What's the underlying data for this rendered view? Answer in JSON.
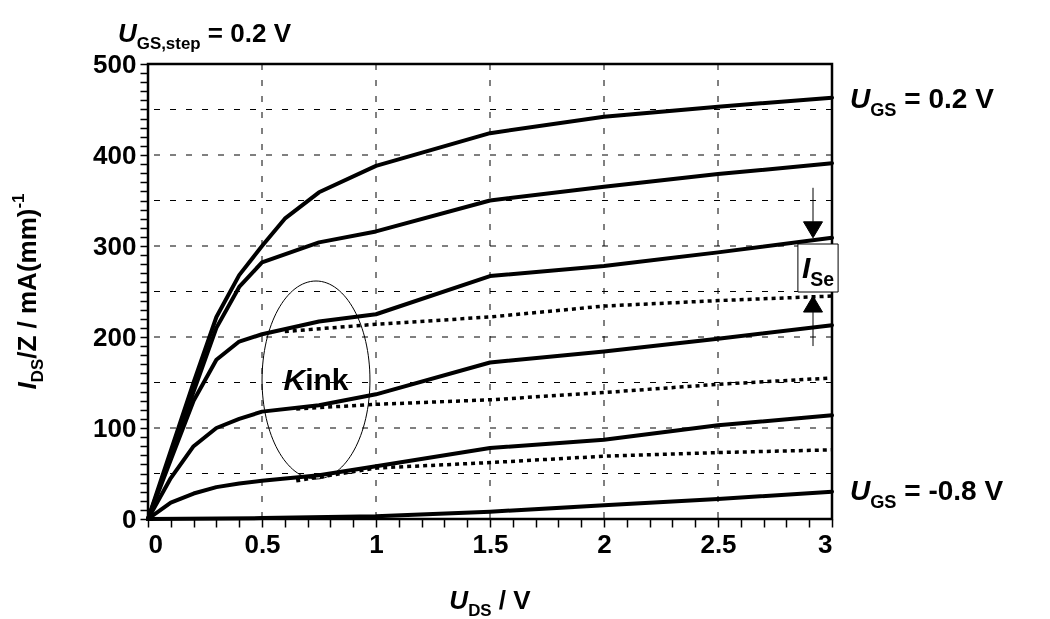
{
  "chart_data": {
    "type": "line",
    "title": "U$_{GS,step}$ = 0.2 V",
    "xlabel": "U$_{DS}$ / V",
    "ylabel": "I$_{DS}$/Z / mA(mm)$^{-1}$",
    "xlim": [
      0,
      3
    ],
    "ylim": [
      0,
      500
    ],
    "xticks": [
      0,
      {
        "value": 0.1,
        "label": null
      },
      {
        "value": 0.2,
        "label": null
      },
      {
        "value": 0.3,
        "label": null
      },
      {
        "value": 0.4,
        "label": null
      },
      0.5,
      {
        "value": 0.6,
        "label": null
      },
      {
        "value": 0.7,
        "label": null
      },
      {
        "value": 0.8,
        "label": null
      },
      {
        "value": 0.9,
        "label": null
      },
      1,
      {
        "value": 1.1,
        "label": null
      },
      {
        "value": 1.2,
        "label": null
      },
      {
        "value": 1.3,
        "label": null
      },
      {
        "value": 1.4,
        "label": null
      },
      1.5,
      {
        "value": 1.6,
        "label": null
      },
      {
        "value": 1.7,
        "label": null
      },
      {
        "value": 1.8,
        "label": null
      },
      {
        "value": 1.9,
        "label": null
      },
      2,
      {
        "value": 2.1,
        "label": null
      },
      {
        "value": 2.2,
        "label": null
      },
      {
        "value": 2.3,
        "label": null
      },
      {
        "value": 2.4,
        "label": null
      },
      2.5,
      {
        "value": 2.6,
        "label": null
      },
      {
        "value": 2.7,
        "label": null
      },
      {
        "value": 2.8,
        "label": null
      },
      {
        "value": 2.9,
        "label": null
      },
      3
    ],
    "yticks": [
      0,
      {
        "value": 10,
        "label": null
      },
      {
        "value": 20,
        "label": null
      },
      {
        "value": 30,
        "label": null
      },
      {
        "value": 40,
        "label": null
      },
      {
        "value": 50,
        "label": null
      },
      {
        "value": 60,
        "label": null
      },
      {
        "value": 70,
        "label": null
      },
      {
        "value": 80,
        "label": null
      },
      {
        "value": 90,
        "label": null
      },
      100,
      {
        "value": 110,
        "label": null
      },
      {
        "value": 120,
        "label": null
      },
      {
        "value": 130,
        "label": null
      },
      {
        "value": 140,
        "label": null
      },
      {
        "value": 150,
        "label": null
      },
      {
        "value": 160,
        "label": null
      },
      {
        "value": 170,
        "label": null
      },
      {
        "value": 180,
        "label": null
      },
      {
        "value": 190,
        "label": null
      },
      200,
      {
        "value": 210,
        "label": null
      },
      {
        "value": 220,
        "label": null
      },
      {
        "value": 230,
        "label": null
      },
      {
        "value": 240,
        "label": null
      },
      {
        "value": 250,
        "label": null
      },
      {
        "value": 260,
        "label": null
      },
      {
        "value": 270,
        "label": null
      },
      {
        "value": 280,
        "label": null
      },
      {
        "value": 290,
        "label": null
      },
      300,
      {
        "value": 310,
        "label": null
      },
      {
        "value": 320,
        "label": null
      },
      {
        "value": 330,
        "label": null
      },
      {
        "value": 340,
        "label": null
      },
      {
        "value": 350,
        "label": null
      },
      {
        "value": 360,
        "label": null
      },
      {
        "value": 370,
        "label": null
      },
      {
        "value": 380,
        "label": null
      },
      {
        "value": 390,
        "label": null
      },
      400,
      {
        "value": 410,
        "label": null
      },
      {
        "value": 420,
        "label": null
      },
      {
        "value": 430,
        "label": null
      },
      {
        "value": 440,
        "label": null
      },
      {
        "value": 450,
        "label": null
      },
      {
        "value": 460,
        "label": null
      },
      {
        "value": 470,
        "label": null
      },
      {
        "value": 480,
        "label": null
      },
      {
        "value": 490,
        "label": null
      },
      500
    ],
    "grid": true,
    "marker": "none",
    "series": [
      {
        "color": "#000000",
        "line_style": "solid",
        "x": [
          0,
          0.1,
          0.2,
          0.3,
          0.4,
          0.5,
          0.6,
          0.75,
          1,
          1.5,
          2,
          2.5,
          3
        ],
        "values": [
          0,
          75,
          150,
          222,
          268,
          300,
          330,
          359,
          388,
          424,
          442,
          453,
          463
        ]
      },
      {
        "color": "#000000",
        "line_style": "solid",
        "x": [
          0,
          0.1,
          0.2,
          0.3,
          0.4,
          0.5,
          0.75,
          1,
          1.5,
          2,
          2.5,
          3
        ],
        "values": [
          0,
          70,
          140,
          210,
          255,
          282,
          304,
          316,
          350,
          365,
          379,
          391
        ]
      },
      {
        "color": "#000000",
        "line_style": "solid",
        "x": [
          0,
          0.1,
          0.2,
          0.3,
          0.4,
          0.5,
          0.75,
          1,
          1.5,
          2,
          2.5,
          3
        ],
        "values": [
          0,
          65,
          130,
          175,
          195,
          203,
          217,
          225,
          267,
          278,
          293,
          309
        ]
      },
      {
        "color": "#000000",
        "line_style": "dotted",
        "x": [
          0.6,
          1,
          1.5,
          2,
          2.5,
          3
        ],
        "values": [
          206,
          214,
          222,
          234,
          240,
          245
        ]
      },
      {
        "color": "#000000",
        "line_style": "solid",
        "x": [
          0,
          0.1,
          0.2,
          0.3,
          0.4,
          0.5,
          0.75,
          1,
          1.5,
          2,
          2.5,
          3
        ],
        "values": [
          0,
          45,
          80,
          100,
          110,
          118,
          125,
          137,
          172,
          184,
          198,
          213
        ]
      },
      {
        "color": "#000000",
        "line_style": "dotted",
        "x": [
          0.65,
          1,
          1.5,
          2,
          2.5,
          3
        ],
        "values": [
          121,
          126,
          131,
          139,
          148,
          155
        ]
      },
      {
        "color": "#000000",
        "line_style": "solid",
        "x": [
          0,
          0.1,
          0.2,
          0.3,
          0.4,
          0.5,
          0.75,
          1,
          1.5,
          2,
          2.5,
          3
        ],
        "values": [
          0,
          18,
          28,
          35,
          39,
          42,
          48,
          58,
          78,
          87,
          103,
          114
        ]
      },
      {
        "color": "#000000",
        "line_style": "dotted",
        "x": [
          0.65,
          1,
          1.5,
          2,
          2.5,
          3
        ],
        "values": [
          42,
          56,
          62,
          69,
          73,
          76
        ]
      },
      {
        "color": "#000000",
        "line_style": "solid",
        "x": [
          0,
          0.5,
          1,
          1.5,
          2,
          2.5,
          3
        ],
        "values": [
          0,
          1,
          3,
          8,
          15,
          22,
          30
        ]
      }
    ],
    "annotations": [
      {
        "text": "U$_{GS}$ = 0.2 V",
        "x": 3,
        "y": 463
      },
      {
        "text": "U$_{GS}$ = -0.8 V",
        "x": 3,
        "y": 32
      },
      "Kink",
      "I$_{Se}$"
    ]
  }
}
